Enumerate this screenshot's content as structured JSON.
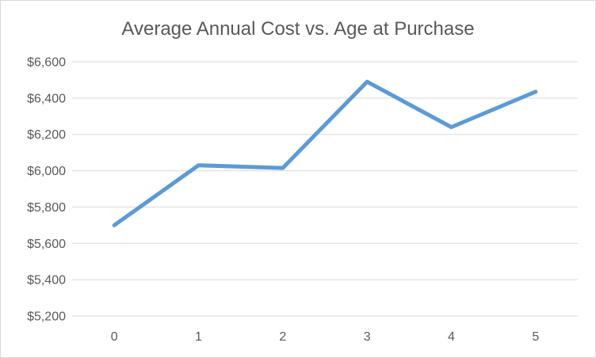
{
  "chart_data": {
    "type": "line",
    "title": "Average Annual Cost vs. Age at Purchase",
    "categories": [
      "0",
      "1",
      "2",
      "3",
      "4",
      "5"
    ],
    "series": [
      {
        "name": "Average Annual Cost",
        "values": [
          5700,
          6030,
          6015,
          6490,
          6240,
          6435
        ]
      }
    ],
    "xlabel": "",
    "ylabel": "",
    "ylim": [
      5200,
      6600
    ],
    "ytick_step": 200,
    "ytick_labels": [
      "$5,200",
      "$5,400",
      "$5,600",
      "$5,800",
      "$6,000",
      "$6,200",
      "$6,400",
      "$6,600"
    ],
    "grid": true,
    "legend": "none",
    "colors": {
      "series": "#5B9BD5",
      "gridline": "#D9D9D9",
      "text": "#595959",
      "border": "#D9D9D9",
      "background": "#FFFFFF"
    }
  }
}
